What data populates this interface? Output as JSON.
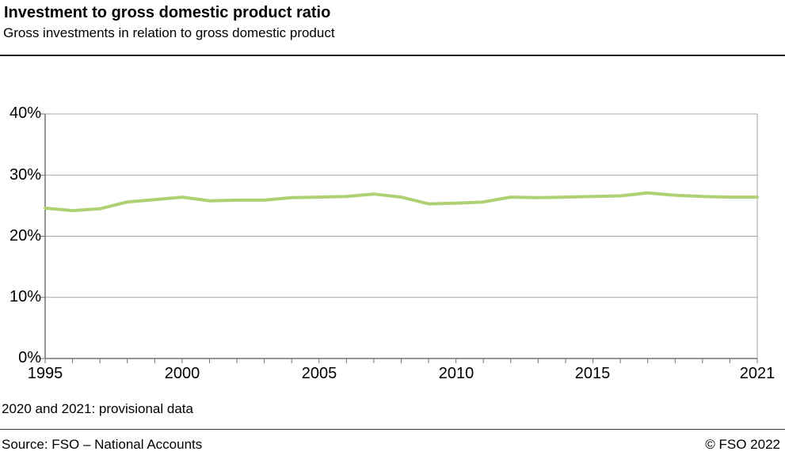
{
  "header": {
    "title": "Investment to gross domestic product ratio",
    "subtitle": "Gross investments in relation to gross domestic product"
  },
  "footnote": "2020 and 2021: provisional data",
  "footer": {
    "source": "Source: FSO – National Accounts",
    "copyright": "© FSO 2022"
  },
  "chart_data": {
    "type": "line",
    "title": "Investment to gross domestic product ratio",
    "xlabel": "",
    "ylabel": "",
    "x": [
      1995,
      1996,
      1997,
      1998,
      1999,
      2000,
      2001,
      2002,
      2003,
      2004,
      2005,
      2006,
      2007,
      2008,
      2009,
      2010,
      2011,
      2012,
      2013,
      2014,
      2015,
      2016,
      2017,
      2018,
      2019,
      2020,
      2021
    ],
    "series": [
      {
        "name": "ratio",
        "values": [
          24.6,
          24.2,
          24.5,
          25.6,
          26.0,
          26.4,
          25.8,
          25.9,
          25.9,
          26.3,
          26.4,
          26.5,
          26.9,
          26.4,
          25.3,
          25.4,
          25.6,
          26.4,
          26.3,
          26.4,
          26.5,
          26.6,
          27.1,
          26.7,
          26.5,
          26.4,
          26.4
        ]
      }
    ],
    "ylim": [
      0,
      40
    ],
    "yticks": [
      0,
      10,
      20,
      30,
      40
    ],
    "ytick_labels": [
      "0%",
      "10%",
      "20%",
      "30%",
      "40%"
    ],
    "xtick_positions": [
      1995,
      2000,
      2005,
      2010,
      2015,
      2021
    ],
    "xtick_labels": [
      "1995",
      "2000",
      "2005",
      "2010",
      "2015",
      "2021"
    ],
    "grid": true,
    "legend": "none",
    "colors": {
      "line": "#aed173",
      "grid": "#a6a6a6",
      "axis": "#737373"
    }
  }
}
